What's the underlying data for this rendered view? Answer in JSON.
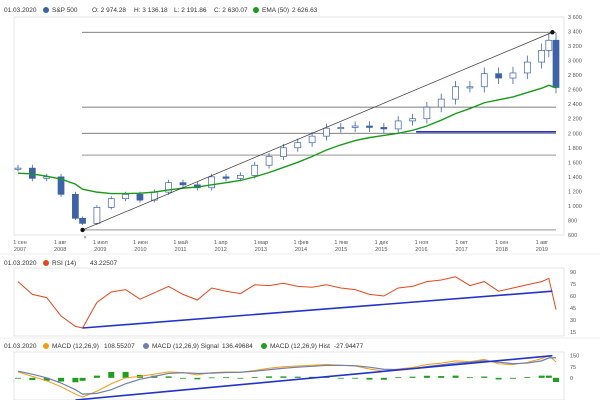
{
  "colors": {
    "ema": "#1a9a1a",
    "candle": "#3d62a8",
    "rsi": "#e8471c",
    "macd": "#f39c12",
    "signal": "#6f7fae",
    "hist": "#1f9e1f",
    "trend_blue": "#2233cc",
    "channel": "#333333",
    "level": "#555555"
  },
  "main": {
    "date": "01.03.2020",
    "series_name": "S&P 500",
    "o": "O: 2 974.28",
    "h": "H: 3 136.18",
    "l": "L: 2 191.86",
    "c": "C: 2 630.07",
    "ema_label": "EMA (50)",
    "ema_value": "2 626.63",
    "y_ticks": [
      "3 600",
      "3 400",
      "3 200",
      "3 000",
      "2 800",
      "2 600",
      "2 400",
      "2 200",
      "2 000",
      "1 800",
      "1 600",
      "1 400",
      "1 200",
      "1 000",
      "800",
      "600"
    ],
    "x_ticks": [
      {
        "top": "1 сен",
        "bottom": "2007"
      },
      {
        "top": "1 авг",
        "bottom": "2008"
      },
      {
        "top": "1 июл",
        "bottom": "2009"
      },
      {
        "top": "1 июн",
        "bottom": "2010"
      },
      {
        "top": "1 май",
        "bottom": "2011"
      },
      {
        "top": "1 апр",
        "bottom": "2012"
      },
      {
        "top": "1 мар",
        "bottom": "2013"
      },
      {
        "top": "1 фев",
        "bottom": "2014"
      },
      {
        "top": "1 янв",
        "bottom": "2015"
      },
      {
        "top": "1 дек",
        "bottom": "2015"
      },
      {
        "top": "1 ноя",
        "bottom": "2016"
      },
      {
        "top": "1 окт",
        "bottom": "2017"
      },
      {
        "top": "1 сен",
        "bottom": "2018"
      },
      {
        "top": "1 авг",
        "bottom": "2019"
      }
    ]
  },
  "rsi": {
    "date": "01.03.2020",
    "label": "RSI (14)",
    "value": "43.22507",
    "y_ticks": [
      "90",
      "75",
      "60",
      "45",
      "30",
      "15"
    ]
  },
  "macd": {
    "date": "01.03.2020",
    "macd_label": "MACD (12,26,9)",
    "macd_value": "108.55207",
    "signal_label": "MACD (12,26,9) Signal",
    "signal_value": "136.49684",
    "hist_label": "MACD (12,26,9) Hist",
    "hist_value": "-27.94477",
    "y_ticks": [
      "150",
      "75",
      "0"
    ]
  },
  "chart_data": [
    {
      "type": "candlestick",
      "title": "S&P 500",
      "categories": [
        "2007-09",
        "2008-01",
        "2008-05",
        "2008-09",
        "2009-01",
        "2009-03",
        "2009-07",
        "2009-11",
        "2010-03",
        "2010-07",
        "2010-11",
        "2011-03",
        "2011-07",
        "2011-11",
        "2012-03",
        "2012-07",
        "2012-11",
        "2013-03",
        "2013-07",
        "2013-11",
        "2014-03",
        "2014-07",
        "2014-11",
        "2015-03",
        "2015-07",
        "2015-11",
        "2016-03",
        "2016-07",
        "2016-11",
        "2017-03",
        "2017-07",
        "2017-11",
        "2018-03",
        "2018-07",
        "2018-11",
        "2019-03",
        "2019-07",
        "2019-11",
        "2020-01",
        "2020-03"
      ],
      "series": [
        {
          "name": "S&P 500",
          "values": [
            1520,
            1380,
            1400,
            1160,
            830,
            760,
            980,
            1100,
            1160,
            1080,
            1190,
            1320,
            1290,
            1250,
            1400,
            1380,
            1420,
            1560,
            1680,
            1800,
            1870,
            1960,
            2070,
            2080,
            2100,
            2080,
            2060,
            2170,
            2200,
            2360,
            2470,
            2640,
            2640,
            2820,
            2760,
            2830,
            2980,
            3140,
            3280,
            2630
          ]
        },
        {
          "name": "EMA (50)",
          "values": [
            1450,
            1440,
            1410,
            1370,
            1300,
            1230,
            1190,
            1170,
            1170,
            1175,
            1190,
            1220,
            1245,
            1260,
            1290,
            1320,
            1350,
            1400,
            1460,
            1530,
            1600,
            1680,
            1770,
            1840,
            1900,
            1940,
            1970,
            2000,
            2040,
            2100,
            2180,
            2270,
            2340,
            2420,
            2460,
            2500,
            2560,
            2620,
            2660,
            2626
          ]
        }
      ],
      "ylim": [
        600,
        3600
      ],
      "annotations": [
        {
          "type": "channel_line",
          "from": [
            "2009-03",
            670
          ],
          "to": [
            "2020-02",
            3390
          ]
        },
        {
          "type": "level",
          "value": 3390
        },
        {
          "type": "level",
          "value": 2360
        },
        {
          "type": "level",
          "value": 2000
        },
        {
          "type": "level",
          "value": 1700
        },
        {
          "type": "level",
          "value": 670
        },
        {
          "type": "support_segment",
          "value": 2020,
          "from": "2016-12",
          "to": "2020-03"
        }
      ]
    },
    {
      "type": "line",
      "title": "RSI (14)",
      "categories": [
        "2007-09",
        "2008-01",
        "2008-05",
        "2008-09",
        "2009-01",
        "2009-03",
        "2009-07",
        "2009-11",
        "2010-03",
        "2010-07",
        "2010-11",
        "2011-03",
        "2011-07",
        "2011-11",
        "2012-03",
        "2012-07",
        "2012-11",
        "2013-03",
        "2013-07",
        "2013-11",
        "2014-03",
        "2014-07",
        "2014-11",
        "2015-03",
        "2015-07",
        "2015-11",
        "2016-03",
        "2016-07",
        "2016-11",
        "2017-03",
        "2017-07",
        "2017-11",
        "2018-03",
        "2018-07",
        "2018-11",
        "2019-03",
        "2019-07",
        "2019-11",
        "2020-01",
        "2020-03"
      ],
      "series": [
        {
          "name": "RSI (14)",
          "values": [
            78,
            62,
            58,
            35,
            22,
            20,
            52,
            65,
            68,
            56,
            64,
            72,
            62,
            55,
            70,
            66,
            63,
            74,
            73,
            76,
            72,
            71,
            74,
            70,
            68,
            62,
            60,
            70,
            72,
            78,
            80,
            84,
            73,
            78,
            66,
            70,
            74,
            78,
            82,
            43
          ]
        }
      ],
      "ylim": [
        10,
        95
      ],
      "annotations": [
        {
          "type": "trend_line",
          "from": [
            "2009-03",
            20
          ],
          "to": [
            "2020-02",
            66
          ]
        }
      ]
    },
    {
      "type": "line",
      "title": "MACD (12,26,9)",
      "categories": [
        "2007-09",
        "2008-01",
        "2008-05",
        "2008-09",
        "2009-01",
        "2009-03",
        "2009-07",
        "2009-11",
        "2010-03",
        "2010-07",
        "2010-11",
        "2011-03",
        "2011-07",
        "2011-11",
        "2012-03",
        "2012-07",
        "2012-11",
        "2013-03",
        "2013-07",
        "2013-11",
        "2014-03",
        "2014-07",
        "2014-11",
        "2015-03",
        "2015-07",
        "2015-11",
        "2016-03",
        "2016-07",
        "2016-11",
        "2017-03",
        "2017-07",
        "2017-11",
        "2018-03",
        "2018-07",
        "2018-11",
        "2019-03",
        "2019-07",
        "2019-11",
        "2020-01",
        "2020-03"
      ],
      "series": [
        {
          "name": "MACD (12,26,9)",
          "values": [
            40,
            10,
            -20,
            -60,
            -110,
            -130,
            -90,
            -40,
            0,
            10,
            25,
            40,
            35,
            20,
            35,
            40,
            38,
            50,
            65,
            75,
            80,
            85,
            90,
            85,
            80,
            60,
            45,
            60,
            70,
            90,
            100,
            115,
            110,
            125,
            95,
            90,
            105,
            130,
            150,
            108
          ]
        },
        {
          "name": "MACD (12,26,9) Signal",
          "values": [
            45,
            25,
            0,
            -35,
            -80,
            -110,
            -105,
            -80,
            -40,
            -10,
            10,
            30,
            35,
            30,
            32,
            36,
            38,
            45,
            55,
            65,
            72,
            78,
            84,
            85,
            82,
            72,
            58,
            56,
            62,
            76,
            88,
            100,
            106,
            116,
            106,
            96,
            100,
            115,
            135,
            136
          ]
        },
        {
          "name": "MACD (12,26,9) Hist",
          "values": [
            -5,
            -15,
            -20,
            -25,
            -30,
            -20,
            15,
            40,
            40,
            20,
            15,
            10,
            0,
            -10,
            3,
            4,
            0,
            5,
            10,
            10,
            8,
            7,
            6,
            0,
            -2,
            -12,
            -13,
            4,
            8,
            14,
            12,
            15,
            4,
            9,
            -11,
            -6,
            5,
            15,
            15,
            -28
          ]
        }
      ],
      "ylim": [
        -150,
        175
      ],
      "annotations": [
        {
          "type": "trend_line",
          "from": [
            "2009-01",
            -150
          ],
          "to": [
            "2020-02",
            150
          ]
        }
      ]
    }
  ]
}
